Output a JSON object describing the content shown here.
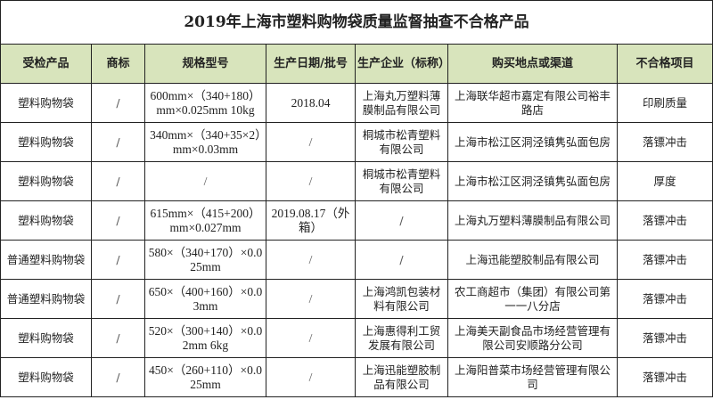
{
  "title": "2019年上海市塑料购物袋质量监督抽查不合格产品",
  "headers": [
    "受检产品",
    "商标",
    "规格型号",
    "生产日期/批号",
    "生产企业（标称）",
    "购买地点或渠道",
    "不合格项目"
  ],
  "header_bg": "#d8e4bc",
  "rows": [
    {
      "product": "塑料购物袋",
      "brand": "/",
      "spec": "600mm×（340+180）mm×0.025mm 10kg",
      "date": "2018.04",
      "maker": "上海丸万塑料薄膜制品有限公司",
      "place": "上海联华超市嘉定有限公司裕丰路店",
      "item": "印刷质量"
    },
    {
      "product": "塑料购物袋",
      "brand": "/",
      "spec": "340mm×（340+35×2）mm×0.03mm",
      "date": "/",
      "maker": "桐城市松青塑料有限公司",
      "place": "上海市松江区洞泾镇隽弘面包房",
      "item": "落镖冲击"
    },
    {
      "product": "塑料购物袋",
      "brand": "/",
      "spec": "/",
      "date": "/",
      "maker": "桐城市松青塑料有限公司",
      "place": "上海市松江区洞泾镇隽弘面包房",
      "item": "厚度"
    },
    {
      "product": "塑料购物袋",
      "brand": "/",
      "spec": "615mm×（415+200）mm×0.027mm",
      "date": "2019.08.17（外箱）",
      "maker": "/",
      "place": "上海丸万塑料薄膜制品有限公司",
      "item": "落镖冲击"
    },
    {
      "product": "普通塑料购物袋",
      "brand": "/",
      "spec": "580×（340+170）×0.025mm",
      "date": "/",
      "maker": "/",
      "place": "上海迅能塑胶制品有限公司",
      "item": "落镖冲击"
    },
    {
      "product": "普通塑料购物袋",
      "brand": "/",
      "spec": "650×（400+160）×0.03mm",
      "date": "/",
      "maker": "上海鸿凯包装材料有限公司",
      "place": "农工商超市（集团）有限公司第一一八分店",
      "item": "落镖冲击"
    },
    {
      "product": "塑料购物袋",
      "brand": "/",
      "spec": "520×（300+140）×0.02mm 6kg",
      "date": "/",
      "maker": "上海惠得利工贸发展有限公司",
      "place": "上海美天副食品市场经营管理有限公司安顺路分公司",
      "item": "落镖冲击"
    },
    {
      "product": "塑料购物袋",
      "brand": "/",
      "spec": "450×（260+110）×0.025mm",
      "date": "/",
      "maker": "上海迅能塑胶制品有限公司",
      "place": "上海阳普菜市场经营管理有限公司",
      "item": "落镖冲击"
    }
  ]
}
